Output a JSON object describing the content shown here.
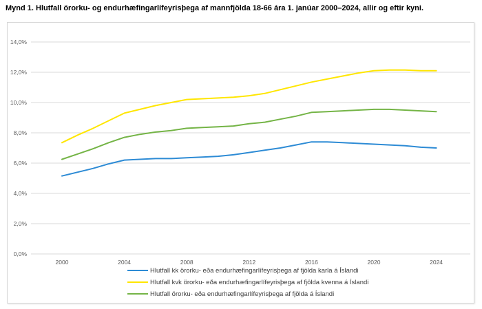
{
  "page": {
    "title": "Mynd 1. Hlutfall örorku- og endurhæfingarlífeyrisþega af mannfjölda 18-66 ára 1. janúar 2000–2024, allir og eftir kyni."
  },
  "chart_data": {
    "type": "line",
    "title": "Mynd 1. Hlutfall örorku- og endurhæfingarlífeyrisþega af mannfjölda 18-66 ára 1. janúar 2000–2024, allir og eftir kyni.",
    "unit": "%",
    "x": [
      2000,
      2001,
      2002,
      2003,
      2004,
      2005,
      2006,
      2007,
      2008,
      2009,
      2010,
      2011,
      2012,
      2013,
      2014,
      2015,
      2016,
      2017,
      2018,
      2019,
      2020,
      2021,
      2022,
      2023,
      2024
    ],
    "series": [
      {
        "name": "Hlutfall kk örorku- eða endurhæfingarlífeyrisþega af fjölda karla á Íslandi",
        "color": "#2d8bd5",
        "values": [
          5.15,
          5.4,
          5.65,
          5.95,
          6.2,
          6.25,
          6.3,
          6.3,
          6.35,
          6.4,
          6.45,
          6.55,
          6.7,
          6.85,
          7.0,
          7.2,
          7.4,
          7.4,
          7.35,
          7.3,
          7.25,
          7.2,
          7.15,
          7.05,
          7.0
        ]
      },
      {
        "name": "Hlutfall kvk örorku- eða endurhæfingarlífeyrisþega af fjölda kvenna á Íslandi",
        "color": "#ffe600",
        "values": [
          7.35,
          7.85,
          8.3,
          8.8,
          9.3,
          9.55,
          9.8,
          10.0,
          10.2,
          10.25,
          10.3,
          10.35,
          10.45,
          10.6,
          10.85,
          11.1,
          11.35,
          11.55,
          11.75,
          11.95,
          12.1,
          12.15,
          12.15,
          12.1,
          12.1
        ]
      },
      {
        "name": "Hlutfall örorku- eða endurhæfingarlífeyrisþega af fjölda á Íslandi",
        "color": "#74b446",
        "values": [
          6.25,
          6.6,
          6.95,
          7.35,
          7.7,
          7.9,
          8.05,
          8.15,
          8.3,
          8.35,
          8.4,
          8.45,
          8.6,
          8.7,
          8.9,
          9.1,
          9.35,
          9.4,
          9.45,
          9.5,
          9.55,
          9.55,
          9.5,
          9.45,
          9.4
        ]
      }
    ],
    "xticks": [
      "2000",
      "2004",
      "2008",
      "2012",
      "2016",
      "2020",
      "2024"
    ],
    "yticks": [
      0,
      2,
      4,
      6,
      8,
      10,
      12,
      14
    ],
    "ytick_labels": [
      "0,0%",
      "2,0%",
      "4,0%",
      "6,0%",
      "8,0%",
      "10,0%",
      "12,0%",
      "14,0%"
    ],
    "ylim": [
      0,
      14
    ],
    "grid": true,
    "legend_position": "bottom"
  },
  "colors": {
    "gridline": "#d9d9d9",
    "chart_border": "#d6d6d6",
    "axis_text": "#595959",
    "legend_text": "#3b3b3b",
    "background": "#ffffff"
  }
}
